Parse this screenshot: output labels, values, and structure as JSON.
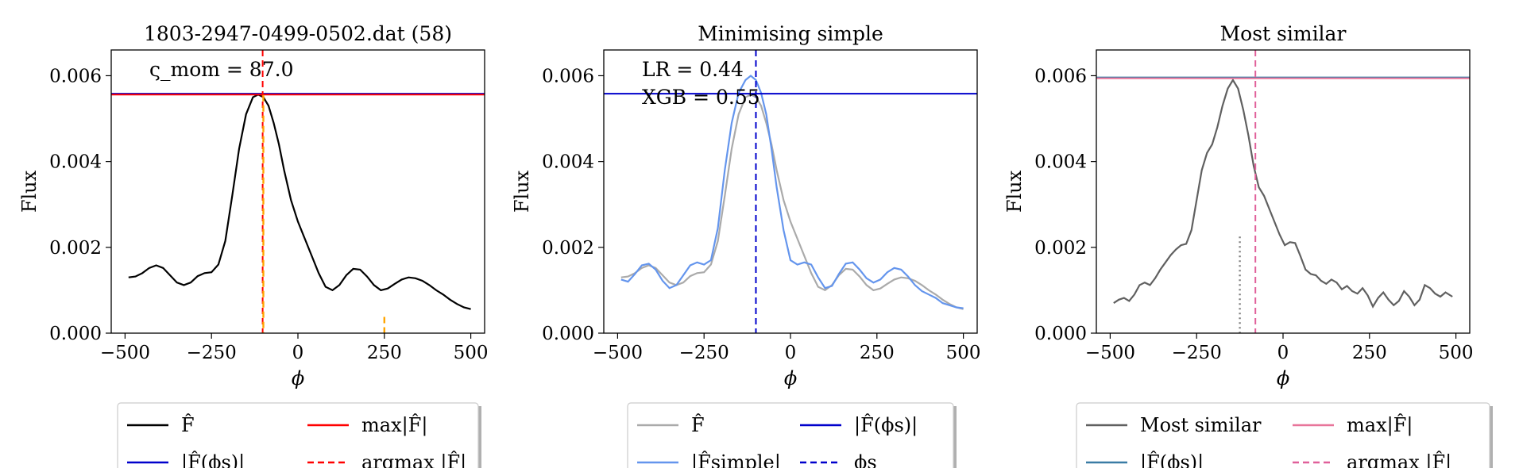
{
  "chart_data": [
    {
      "type": "line",
      "title": "1803-2947-0499-0502.dat (58)",
      "xlabel": "ϕ",
      "ylabel": "Flux",
      "xlim": [
        -540,
        540
      ],
      "ylim": [
        0,
        0.0066
      ],
      "xticks": [
        -500,
        -250,
        0,
        250,
        500
      ],
      "xtick_labels": [
        "−500",
        "−250",
        "0",
        "250",
        "500"
      ],
      "yticks": [
        0,
        0.002,
        0.004,
        0.006
      ],
      "ytick_labels": [
        "0.000",
        "0.002",
        "0.004",
        "0.006"
      ],
      "annotations": [
        "ς_mom = 87.0"
      ],
      "series": [
        {
          "name": "F̂",
          "color": "#000000",
          "style": "solid",
          "x": [
            -490,
            -470,
            -450,
            -430,
            -410,
            -390,
            -370,
            -350,
            -330,
            -310,
            -290,
            -270,
            -250,
            -230,
            -210,
            -190,
            -170,
            -150,
            -130,
            -115,
            -100,
            -85,
            -70,
            -55,
            -40,
            -20,
            0,
            20,
            40,
            60,
            80,
            100,
            120,
            140,
            160,
            180,
            200,
            220,
            240,
            260,
            280,
            300,
            320,
            340,
            360,
            380,
            400,
            420,
            440,
            460,
            480,
            500
          ],
          "y": [
            0.0013,
            0.00132,
            0.0014,
            0.00152,
            0.00158,
            0.00152,
            0.00135,
            0.00118,
            0.00112,
            0.00118,
            0.00133,
            0.0014,
            0.00142,
            0.0016,
            0.00215,
            0.0032,
            0.0043,
            0.0051,
            0.0055,
            0.00556,
            0.0055,
            0.0053,
            0.0049,
            0.0044,
            0.0038,
            0.0031,
            0.0026,
            0.0022,
            0.0018,
            0.0014,
            0.00108,
            0.001,
            0.00112,
            0.00135,
            0.0015,
            0.00148,
            0.00132,
            0.00112,
            0.001,
            0.00104,
            0.00115,
            0.00125,
            0.0013,
            0.00128,
            0.00122,
            0.00112,
            0.001,
            0.0009,
            0.00078,
            0.00068,
            0.0006,
            0.00056
          ]
        },
        {
          "name": "|F̂(ϕs)|",
          "color": "#0000cc",
          "style": "solid",
          "hline": 0.00558
        },
        {
          "name": "max|F̂|",
          "color": "#ff0000",
          "style": "solid",
          "hline": 0.00556
        },
        {
          "name": "argmax |F̂|",
          "color": "#ff0000",
          "style": "dashed",
          "vline": -102
        }
      ],
      "extra_marks": [
        {
          "color": "#ffa500",
          "style": "dashed",
          "x": -100,
          "y_top": 0.00555
        },
        {
          "color": "#ffa500",
          "style": "dashed",
          "x": 250,
          "y_top": 0.00038
        }
      ],
      "legend": [
        {
          "label": "F̂",
          "color": "#000000",
          "style": "solid"
        },
        {
          "label": "max|F̂|",
          "color": "#ff0000",
          "style": "solid"
        },
        {
          "label": "|F̂(ϕs)|",
          "color": "#0000cc",
          "style": "solid"
        },
        {
          "label": "argmax |F̂|",
          "color": "#ff0000",
          "style": "dashed"
        }
      ]
    },
    {
      "type": "line",
      "title": "Minimising simple",
      "xlabel": "ϕ",
      "ylabel": "Flux",
      "xlim": [
        -540,
        540
      ],
      "ylim": [
        0,
        0.0066
      ],
      "xticks": [
        -500,
        -250,
        0,
        250,
        500
      ],
      "xtick_labels": [
        "−500",
        "−250",
        "0",
        "250",
        "500"
      ],
      "yticks": [
        0,
        0.002,
        0.004,
        0.006
      ],
      "ytick_labels": [
        "0.000",
        "0.002",
        "0.004",
        "0.006"
      ],
      "annotations": [
        "LR = 0.44",
        "XGB = 0.55"
      ],
      "series": [
        {
          "name": "F̂",
          "color": "#aaaaaa",
          "style": "solid",
          "x": [
            -490,
            -470,
            -450,
            -430,
            -410,
            -390,
            -370,
            -350,
            -330,
            -310,
            -290,
            -270,
            -250,
            -230,
            -210,
            -190,
            -170,
            -150,
            -130,
            -115,
            -100,
            -85,
            -70,
            -55,
            -40,
            -20,
            0,
            20,
            40,
            60,
            80,
            100,
            120,
            140,
            160,
            180,
            200,
            220,
            240,
            260,
            280,
            300,
            320,
            340,
            360,
            380,
            400,
            420,
            440,
            460,
            480,
            500
          ],
          "y": [
            0.0013,
            0.00132,
            0.0014,
            0.00152,
            0.00158,
            0.00152,
            0.00135,
            0.00118,
            0.00112,
            0.00118,
            0.00133,
            0.0014,
            0.00142,
            0.0016,
            0.00215,
            0.0032,
            0.0043,
            0.0051,
            0.0055,
            0.00556,
            0.0055,
            0.0053,
            0.0049,
            0.0044,
            0.0038,
            0.0031,
            0.0026,
            0.0022,
            0.0018,
            0.0014,
            0.00108,
            0.001,
            0.00112,
            0.00135,
            0.0015,
            0.00148,
            0.00132,
            0.00112,
            0.001,
            0.00104,
            0.00115,
            0.00125,
            0.0013,
            0.00128,
            0.00122,
            0.00112,
            0.001,
            0.0009,
            0.00078,
            0.00068,
            0.0006,
            0.00056
          ]
        },
        {
          "name": "|F̂simple|",
          "color": "#6495ed",
          "style": "solid",
          "x": [
            -490,
            -470,
            -450,
            -430,
            -410,
            -390,
            -370,
            -350,
            -330,
            -310,
            -290,
            -270,
            -250,
            -230,
            -210,
            -190,
            -170,
            -150,
            -130,
            -115,
            -100,
            -85,
            -70,
            -55,
            -40,
            -20,
            0,
            20,
            40,
            60,
            80,
            100,
            120,
            140,
            160,
            180,
            200,
            220,
            240,
            260,
            280,
            300,
            320,
            340,
            360,
            380,
            400,
            420,
            440,
            460,
            480,
            500
          ],
          "y": [
            0.00125,
            0.0012,
            0.00138,
            0.00158,
            0.00162,
            0.00148,
            0.00122,
            0.00105,
            0.00112,
            0.00135,
            0.00158,
            0.00165,
            0.0016,
            0.0017,
            0.00245,
            0.0038,
            0.0049,
            0.0056,
            0.0059,
            0.006,
            0.0059,
            0.0056,
            0.0051,
            0.0043,
            0.0034,
            0.0024,
            0.0017,
            0.0016,
            0.00165,
            0.0016,
            0.0013,
            0.00105,
            0.0011,
            0.00138,
            0.00162,
            0.00165,
            0.00148,
            0.00128,
            0.00118,
            0.00125,
            0.00142,
            0.00152,
            0.00148,
            0.00132,
            0.00112,
            0.00098,
            0.0009,
            0.00082,
            0.0007,
            0.00065,
            0.0006,
            0.00058
          ]
        },
        {
          "name": "|F̂(ϕs)|",
          "color": "#0000cc",
          "style": "solid",
          "hline": 0.00558
        },
        {
          "name": "ϕs",
          "color": "#0000cc",
          "style": "dashed",
          "vline": -100
        }
      ],
      "legend": [
        {
          "label": "F̂",
          "color": "#aaaaaa",
          "style": "solid"
        },
        {
          "label": "|F̂(ϕs)|",
          "color": "#0000cc",
          "style": "solid"
        },
        {
          "label": "|F̂simple|",
          "color": "#6495ed",
          "style": "solid"
        },
        {
          "label": "ϕs",
          "color": "#0000cc",
          "style": "dashed"
        }
      ]
    },
    {
      "type": "line",
      "title": "Most similar",
      "xlabel": "ϕ",
      "ylabel": "Flux",
      "xlim": [
        -540,
        540
      ],
      "ylim": [
        0,
        0.0066
      ],
      "xticks": [
        -500,
        -250,
        0,
        250,
        500
      ],
      "xtick_labels": [
        "−500",
        "−250",
        "0",
        "250",
        "500"
      ],
      "yticks": [
        0,
        0.002,
        0.004,
        0.006
      ],
      "ytick_labels": [
        "0.000",
        "0.002",
        "0.004",
        "0.006"
      ],
      "annotations": [],
      "series": [
        {
          "name": "Most similar",
          "color": "#606060",
          "style": "solid",
          "x": [
            -490,
            -475,
            -460,
            -445,
            -430,
            -415,
            -400,
            -385,
            -370,
            -355,
            -340,
            -325,
            -310,
            -295,
            -280,
            -265,
            -250,
            -235,
            -220,
            -205,
            -190,
            -175,
            -160,
            -145,
            -130,
            -115,
            -100,
            -85,
            -70,
            -55,
            -40,
            -25,
            -10,
            5,
            20,
            35,
            50,
            65,
            80,
            95,
            110,
            125,
            140,
            155,
            170,
            185,
            200,
            215,
            230,
            245,
            260,
            275,
            290,
            305,
            320,
            335,
            350,
            365,
            380,
            395,
            410,
            425,
            440,
            455,
            470,
            490
          ],
          "y": [
            0.0007,
            0.00078,
            0.00082,
            0.00075,
            0.0009,
            0.00112,
            0.00118,
            0.00112,
            0.00128,
            0.00148,
            0.00165,
            0.00182,
            0.00195,
            0.00205,
            0.00208,
            0.0024,
            0.0031,
            0.0038,
            0.0042,
            0.0044,
            0.0048,
            0.0053,
            0.0057,
            0.0059,
            0.0057,
            0.0052,
            0.0046,
            0.0039,
            0.0034,
            0.0032,
            0.0029,
            0.0026,
            0.0023,
            0.00205,
            0.00212,
            0.0021,
            0.0018,
            0.00148,
            0.00138,
            0.00135,
            0.00122,
            0.00115,
            0.00125,
            0.00118,
            0.00102,
            0.0011,
            0.00098,
            0.00092,
            0.00105,
            0.00088,
            0.00062,
            0.00082,
            0.00095,
            0.00078,
            0.00065,
            0.00075,
            0.00098,
            0.00085,
            0.00065,
            0.00078,
            0.00112,
            0.00105,
            0.00092,
            0.00085,
            0.00095,
            0.00085
          ]
        },
        {
          "name": "|F̂(ϕs)|",
          "color": "#3a7ca5",
          "style": "solid",
          "hline": 0.00596
        },
        {
          "name": "max|F̂|",
          "color": "#e8759a",
          "style": "solid",
          "hline": 0.00594
        },
        {
          "name": "argmax |F̂|",
          "color": "#e0609a",
          "style": "dashed",
          "vline": -80
        }
      ],
      "extra_marks": [
        {
          "color": "#808080",
          "style": "dotted",
          "x": -125,
          "y_top": 0.00225
        }
      ],
      "legend": [
        {
          "label": "Most similar",
          "color": "#606060",
          "style": "solid"
        },
        {
          "label": "max|F̂|",
          "color": "#e8759a",
          "style": "solid"
        },
        {
          "label": "|F̂(ϕs)|",
          "color": "#3a7ca5",
          "style": "solid"
        },
        {
          "label": "argmax |F̂|",
          "color": "#e0609a",
          "style": "dashed"
        }
      ]
    }
  ]
}
